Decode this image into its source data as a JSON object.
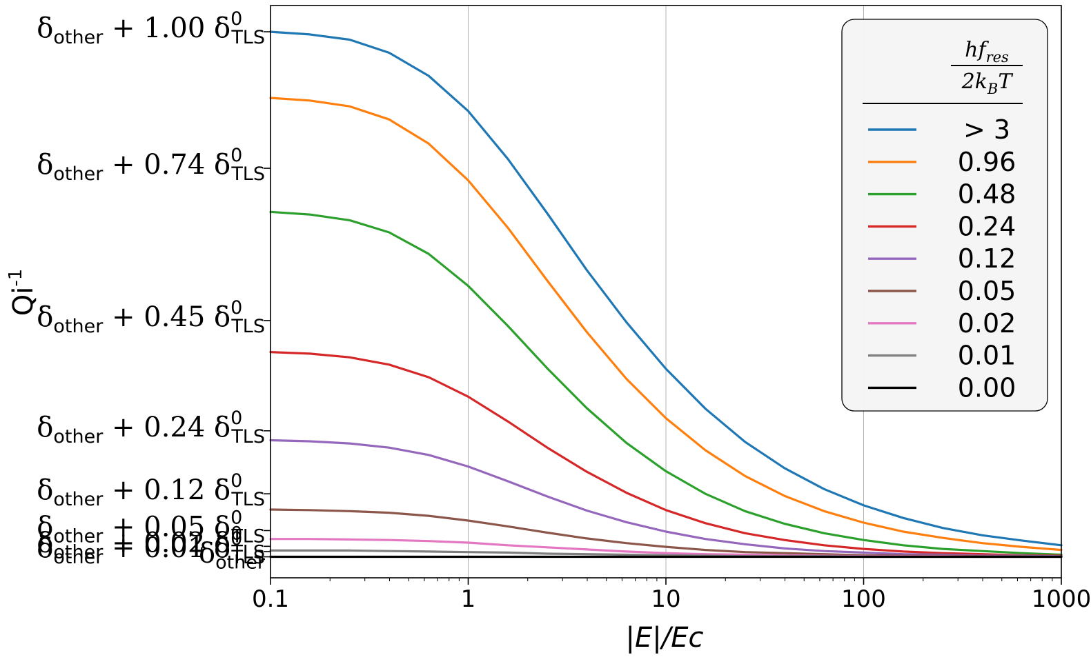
{
  "chart_data": {
    "type": "line",
    "x_scale": "log",
    "xlim": [
      0.1,
      1000
    ],
    "ylim": [
      -0.04,
      1.05
    ],
    "xlabel": "|E|/Ec",
    "ylabel": "Qi",
    "ylabel_sup": "-1",
    "grid": "vertical",
    "x_ticks": [
      {
        "value": 0.1,
        "label": "0.1"
      },
      {
        "value": 1,
        "label": "1"
      },
      {
        "value": 10,
        "label": "10"
      },
      {
        "value": 100,
        "label": "100"
      },
      {
        "value": 1000,
        "label": "1000"
      }
    ],
    "y_ticks": [
      {
        "value": 1.0,
        "coef": "1.00"
      },
      {
        "value": 0.74,
        "coef": "0.74"
      },
      {
        "value": 0.45,
        "coef": "0.45"
      },
      {
        "value": 0.24,
        "coef": "0.24"
      },
      {
        "value": 0.12,
        "coef": "0.12"
      },
      {
        "value": 0.05,
        "coef": "0.05"
      },
      {
        "value": 0.02,
        "coef": "0.02"
      },
      {
        "value": 0.01,
        "coef": "0.01"
      },
      {
        "value": 0.0,
        "coef": ""
      }
    ],
    "y_tick_symbol": "δ",
    "y_tick_sub_other": "other",
    "y_tick_plus": "+",
    "y_tick_sub_tls": "TLS",
    "y_tick_sup_tls": "0",
    "legend": {
      "position": "top-right",
      "title_numerator": "hf",
      "title_numerator_sub": "res",
      "title_denominator": "2k",
      "title_denominator_sub": "B",
      "title_denominator_tail": "T"
    },
    "series": [
      {
        "name": "> 3",
        "color": "#1f77b4",
        "y": [
          1.0,
          0.995,
          0.985,
          0.96,
          0.916,
          0.849,
          0.758,
          0.654,
          0.546,
          0.447,
          0.358,
          0.282,
          0.219,
          0.169,
          0.129,
          0.098,
          0.074,
          0.055,
          0.041,
          0.031,
          0.022
        ]
      },
      {
        "name": "0.96",
        "color": "#ff7f0e",
        "y": [
          0.874,
          0.869,
          0.858,
          0.833,
          0.787,
          0.717,
          0.627,
          0.526,
          0.428,
          0.339,
          0.264,
          0.203,
          0.154,
          0.116,
          0.087,
          0.065,
          0.048,
          0.036,
          0.026,
          0.019,
          0.013
        ]
      },
      {
        "name": "0.48",
        "color": "#2ca02c",
        "y": [
          0.657,
          0.652,
          0.641,
          0.618,
          0.577,
          0.516,
          0.44,
          0.359,
          0.283,
          0.217,
          0.163,
          0.12,
          0.087,
          0.063,
          0.045,
          0.032,
          0.022,
          0.015,
          0.011,
          0.007,
          0.004
        ]
      },
      {
        "name": "0.24",
        "color": "#d62728",
        "y": [
          0.39,
          0.387,
          0.38,
          0.366,
          0.342,
          0.305,
          0.258,
          0.208,
          0.162,
          0.122,
          0.089,
          0.064,
          0.045,
          0.032,
          0.022,
          0.015,
          0.01,
          0.007,
          0.005,
          0.003,
          0.002
        ]
      },
      {
        "name": "0.12",
        "color": "#9467bd",
        "y": [
          0.222,
          0.22,
          0.216,
          0.208,
          0.194,
          0.172,
          0.144,
          0.115,
          0.088,
          0.066,
          0.048,
          0.034,
          0.024,
          0.016,
          0.011,
          0.008,
          0.005,
          0.004,
          0.002,
          0.002,
          0.001
        ]
      },
      {
        "name": "0.05",
        "color": "#8c564b",
        "y": [
          0.09,
          0.089,
          0.087,
          0.084,
          0.078,
          0.069,
          0.058,
          0.046,
          0.035,
          0.026,
          0.019,
          0.013,
          0.009,
          0.007,
          0.005,
          0.003,
          0.002,
          0.002,
          0.001,
          0.001,
          0.0
        ]
      },
      {
        "name": "0.02",
        "color": "#e377c2",
        "y": [
          0.034,
          0.034,
          0.033,
          0.032,
          0.03,
          0.027,
          0.022,
          0.018,
          0.014,
          0.01,
          0.007,
          0.005,
          0.004,
          0.003,
          0.002,
          0.001,
          0.001,
          0.001,
          0.0,
          0.0,
          0.0
        ]
      },
      {
        "name": "0.01",
        "color": "#7f7f7f",
        "y": [
          0.012,
          0.012,
          0.012,
          0.011,
          0.01,
          0.009,
          0.008,
          0.006,
          0.005,
          0.004,
          0.003,
          0.002,
          0.001,
          0.001,
          0.001,
          0.0,
          0.0,
          0.0,
          0.0,
          0.0,
          0.0
        ]
      },
      {
        "name": "0.00",
        "color": "#000000",
        "y": [
          0.0,
          0.0,
          0.0,
          0.0,
          0.0,
          0.0,
          0.0,
          0.0,
          0.0,
          0.0,
          0.0,
          0.0,
          0.0,
          0.0,
          0.0,
          0.0,
          0.0,
          0.0,
          0.0,
          0.0,
          0.0
        ]
      }
    ],
    "x": [
      0.1,
      0.158,
      0.251,
      0.398,
      0.631,
      1,
      1.585,
      2.512,
      3.981,
      6.31,
      10,
      15.85,
      25.12,
      39.81,
      63.1,
      100,
      158.5,
      251.2,
      398.1,
      631,
      1000
    ]
  }
}
